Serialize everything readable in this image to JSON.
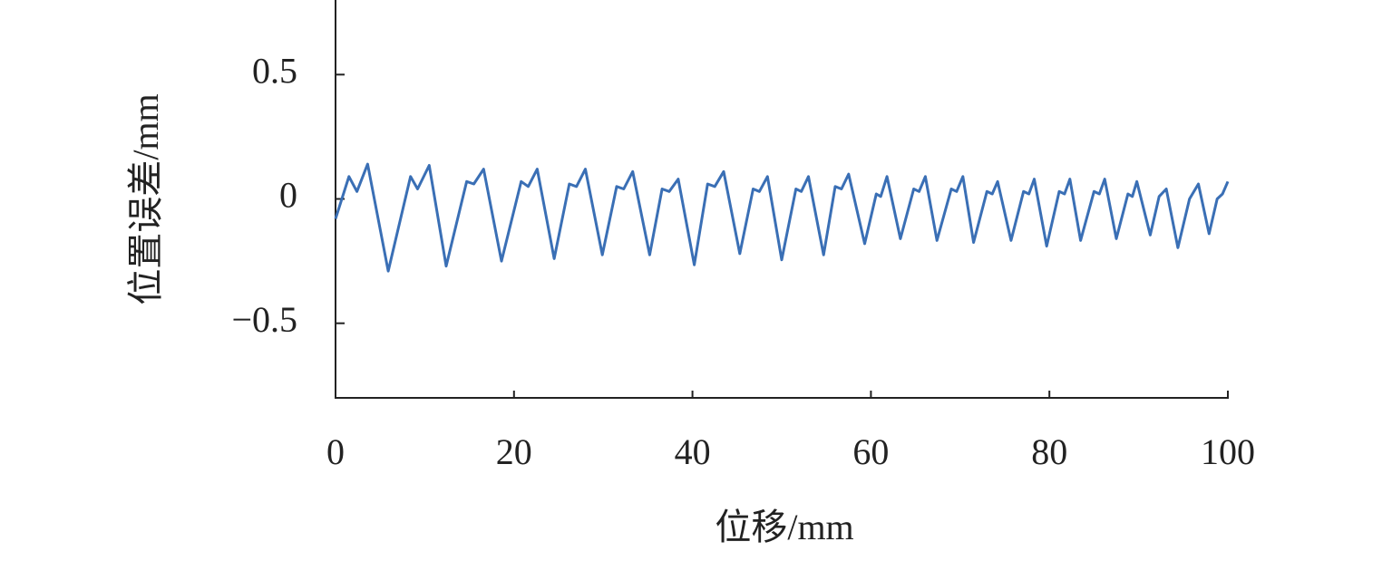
{
  "chart_data": {
    "type": "line",
    "x_label": "位移/mm",
    "y_label": "位置误差/mm",
    "x": [
      0,
      1.5,
      2.4,
      3.6,
      5.9,
      8.4,
      9.2,
      10.5,
      12.4,
      14.7,
      15.5,
      16.6,
      18.6,
      20.8,
      21.6,
      22.6,
      24.5,
      26.2,
      27.0,
      28.0,
      29.9,
      31.5,
      32.3,
      33.3,
      35.2,
      36.6,
      37.4,
      38.4,
      40.2,
      41.7,
      42.5,
      43.5,
      45.3,
      46.8,
      47.5,
      48.4,
      50.0,
      51.6,
      52.2,
      53.0,
      54.7,
      56.0,
      56.7,
      57.5,
      59.3,
      60.6,
      61.1,
      61.8,
      63.3,
      64.8,
      65.4,
      66.1,
      67.4,
      69.0,
      69.6,
      70.3,
      71.5,
      73.0,
      73.6,
      74.2,
      75.7,
      77.1,
      77.7,
      78.3,
      79.7,
      81.1,
      81.7,
      82.3,
      83.5,
      85.0,
      85.6,
      86.2,
      87.5,
      88.8,
      89.3,
      89.8,
      91.3,
      92.3,
      93.1,
      94.4,
      95.7,
      96.7,
      97.9,
      98.8,
      99.4,
      100
    ],
    "series": [
      {
        "color": "#3a6fb5",
        "values": [
          -0.08,
          0.09,
          0.03,
          0.14,
          -0.29,
          0.09,
          0.04,
          0.135,
          -0.27,
          0.07,
          0.06,
          0.12,
          -0.25,
          0.07,
          0.05,
          0.12,
          -0.24,
          0.06,
          0.05,
          0.12,
          -0.225,
          0.05,
          0.04,
          0.11,
          -0.225,
          0.04,
          0.03,
          0.08,
          -0.265,
          0.06,
          0.05,
          0.11,
          -0.22,
          0.04,
          0.03,
          0.09,
          -0.245,
          0.04,
          0.03,
          0.09,
          -0.225,
          0.05,
          0.04,
          0.1,
          -0.18,
          0.02,
          0.01,
          0.09,
          -0.16,
          0.04,
          0.03,
          0.09,
          -0.167,
          0.04,
          0.03,
          0.09,
          -0.175,
          0.03,
          0.02,
          0.07,
          -0.167,
          0.03,
          0.02,
          0.08,
          -0.19,
          0.03,
          0.02,
          0.08,
          -0.167,
          0.03,
          0.02,
          0.08,
          -0.16,
          0.02,
          0.01,
          0.07,
          -0.145,
          0.01,
          0.04,
          -0.196,
          0.0,
          0.06,
          -0.14,
          0.0,
          0.02,
          0.07
        ]
      }
    ],
    "xlim": [
      0,
      100
    ],
    "xticks": [
      0,
      20,
      40,
      60,
      80,
      100
    ],
    "ylim": [
      -0.8,
      0.8
    ],
    "yticks": [
      {
        "value": -0.5,
        "label": "−0.5"
      },
      0,
      0.5
    ]
  }
}
